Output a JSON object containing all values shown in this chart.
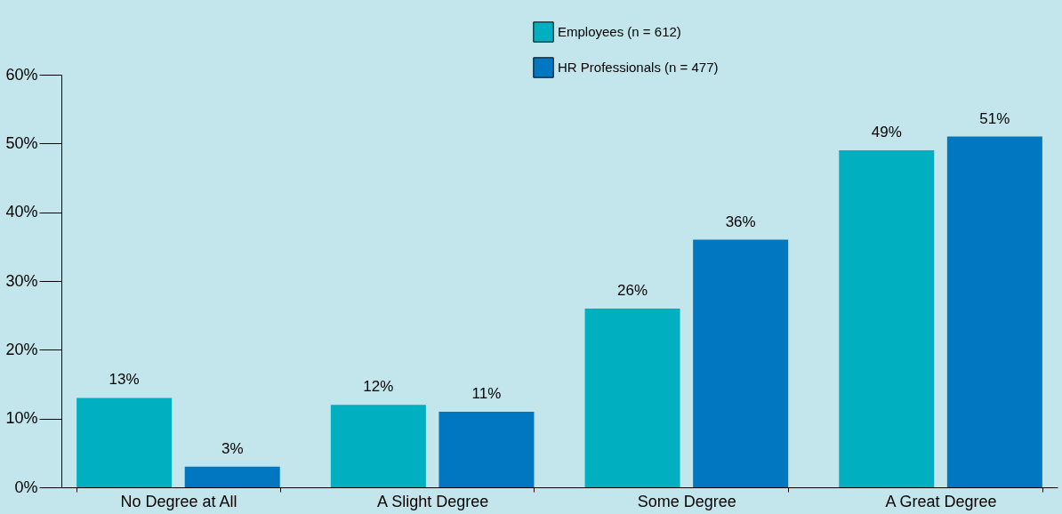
{
  "chart_data": {
    "type": "bar",
    "categories": [
      "No Degree at All",
      "A Slight Degree",
      "Some Degree",
      "A Great Degree"
    ],
    "series": [
      {
        "name": "Employees (n = 612)",
        "color": "#00b0c0",
        "values": [
          13,
          12,
          26,
          49
        ],
        "value_labels": [
          "13%",
          "12%",
          "26%",
          "49%"
        ]
      },
      {
        "name": "HR Professionals (n = 477)",
        "color": "#0077c0",
        "values": [
          3,
          11,
          36,
          51
        ],
        "value_labels": [
          "3%",
          "11%",
          "36%",
          "51%"
        ]
      }
    ],
    "ylim": [
      0,
      60
    ],
    "yticks": [
      {
        "value": 0,
        "label": "0%"
      },
      {
        "value": 10,
        "label": "10%"
      },
      {
        "value": 20,
        "label": "20%"
      },
      {
        "value": 30,
        "label": "30%"
      },
      {
        "value": 40,
        "label": "40%"
      },
      {
        "value": 50,
        "label": "50%"
      },
      {
        "value": 60,
        "label": "60%"
      }
    ],
    "grid": false,
    "legend": "top"
  }
}
